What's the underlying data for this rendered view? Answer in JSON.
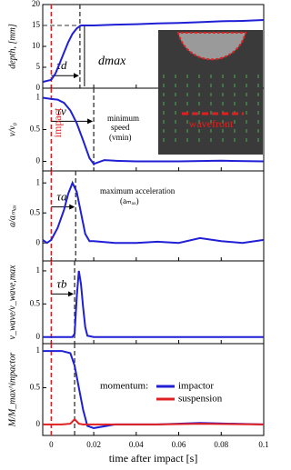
{
  "chart_data": [
    {
      "type": "line",
      "ylabel": "depth, [mm]",
      "xlim": [
        -0.004,
        0.1
      ],
      "xticks": [
        0,
        0.02,
        0.04,
        0.06,
        0.08,
        0.1
      ],
      "ylim": [
        0,
        20
      ],
      "yticks": [
        0,
        5,
        10,
        15,
        20
      ],
      "x": [
        -0.004,
        0,
        0.002,
        0.004,
        0.006,
        0.008,
        0.01,
        0.012,
        0.014,
        0.016,
        0.02,
        0.03,
        0.04,
        0.05,
        0.06,
        0.07,
        0.08,
        0.09,
        0.1
      ],
      "series": [
        {
          "color": "#1f1fd6",
          "values": [
            1.5,
            2,
            3.5,
            6,
            8.5,
            11,
            13,
            14.3,
            15,
            15,
            15,
            15.2,
            15.3,
            15.5,
            15.6,
            15.8,
            16,
            16.1,
            16.3
          ]
        }
      ],
      "impact_x": 0,
      "marker_x": 0.0135,
      "marker_y": 15,
      "tau_label": "τd",
      "annotations": [
        "dmax"
      ],
      "inset_label": "wavefront"
    },
    {
      "type": "line",
      "ylabel": "v/v₀",
      "xlim": [
        -0.004,
        0.1
      ],
      "xticks": [
        0,
        0.02,
        0.04,
        0.06,
        0.08,
        0.1
      ],
      "ylim": [
        -0.15,
        1.15
      ],
      "yticks": [
        0,
        0.5,
        1
      ],
      "x": [
        -0.004,
        0,
        0.003,
        0.006,
        0.009,
        0.012,
        0.015,
        0.018,
        0.02,
        0.025,
        0.03,
        0.04,
        0.06,
        0.08,
        0.1
      ],
      "series": [
        {
          "color": "#1f1fd6",
          "values": [
            1,
            0.98,
            0.97,
            0.92,
            0.8,
            0.6,
            0.33,
            0.05,
            -0.04,
            0.02,
            0.01,
            0,
            0,
            0.01,
            0
          ]
        }
      ],
      "impact_x": 0,
      "marker_x": 0.02,
      "tau_label": "τv",
      "annotations": [
        "minimum",
        "speed",
        "(vmin)",
        "impact"
      ]
    },
    {
      "type": "line",
      "ylabel": "a/aₘₐₓ",
      "xlim": [
        -0.004,
        0.1
      ],
      "xticks": [
        0,
        0.02,
        0.04,
        0.06,
        0.08,
        0.1
      ],
      "ylim": [
        -0.3,
        1.2
      ],
      "yticks": [
        0,
        0.5,
        1
      ],
      "x": [
        -0.004,
        -0.002,
        0,
        0.003,
        0.006,
        0.008,
        0.01,
        0.012,
        0.014,
        0.016,
        0.018,
        0.02,
        0.03,
        0.04,
        0.05,
        0.06,
        0.07,
        0.08,
        0.09,
        0.1
      ],
      "series": [
        {
          "color": "#1f1fd6",
          "values": [
            0.05,
            0,
            0.05,
            0.25,
            0.55,
            0.82,
            1,
            0.85,
            0.5,
            0.15,
            0.03,
            0.03,
            0,
            0,
            0.02,
            0,
            0.08,
            0.03,
            0,
            0.05
          ]
        }
      ],
      "impact_x": 0,
      "marker_x": 0.0115,
      "tau_label": "τa",
      "annotations": [
        "maximum acceleration",
        "(aₘₐₓ)"
      ]
    },
    {
      "type": "line",
      "ylabel": "v_wave/v_wave,max",
      "xlim": [
        -0.004,
        0.1
      ],
      "xticks": [
        0,
        0.02,
        0.04,
        0.06,
        0.08,
        0.1
      ],
      "ylim": [
        -0.1,
        1.15
      ],
      "yticks": [
        0,
        0.5,
        1
      ],
      "x": [
        -0.004,
        0.01,
        0.011,
        0.012,
        0.013,
        0.014,
        0.015,
        0.016,
        0.017,
        0.02,
        0.03,
        0.05,
        0.07,
        0.1
      ],
      "series": [
        {
          "color": "#1f1fd6",
          "values": [
            0,
            0,
            0.05,
            0.6,
            1,
            0.8,
            0.45,
            0.15,
            0.02,
            0,
            0,
            0,
            0,
            0
          ]
        }
      ],
      "impact_x": 0,
      "marker_x": 0.011,
      "tau_label": "τb",
      "annotations": []
    },
    {
      "type": "line",
      "ylabel": "M/M_max^impactor",
      "xlabel": "time after impact [s]",
      "xlim": [
        -0.004,
        0.1
      ],
      "xticks": [
        0,
        0.02,
        0.04,
        0.06,
        0.08,
        0.1
      ],
      "ylim": [
        -0.15,
        1.1
      ],
      "yticks": [
        0,
        0.5,
        1
      ],
      "x": [
        -0.004,
        0.005,
        0.009,
        0.011,
        0.013,
        0.015,
        0.017,
        0.02,
        0.03,
        0.05,
        0.07,
        0.1
      ],
      "series": [
        {
          "name": "impactor",
          "color": "#1f1fd6",
          "values": [
            1,
            1,
            0.97,
            0.8,
            0.5,
            0.2,
            -0.02,
            -0.05,
            0,
            0,
            0.02,
            0
          ]
        },
        {
          "name": "suspension",
          "color": "#e02020",
          "values": [
            0,
            0,
            0.01,
            0.07,
            0.01,
            0,
            0,
            0,
            0,
            0,
            0.01,
            0
          ]
        }
      ],
      "impact_x": 0,
      "marker_x": 0.011,
      "legend_title": "momentum:",
      "annotations": []
    }
  ]
}
